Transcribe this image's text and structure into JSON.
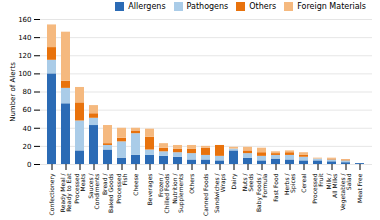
{
  "chart_data": {
    "type": "bar",
    "stacked": true,
    "categories": [
      "Confectionery",
      "Ready Meal /\nReady to Eat",
      "Processed\nMeats",
      "Sauces /\nCondiments",
      "Bread /\nBaked Goods",
      "Processed\nFish",
      "Cheese",
      "Beverages",
      "Frozen /\nChilled Foods",
      "Nutrition /\nSupplements",
      "Others",
      "Canned Foods",
      "Sandwiches /\nWraps",
      "Dairy",
      "Nuts /\nSeeds",
      "Baby Foods /\nFormula",
      "Fast Food",
      "Herbs /\nSpices",
      "Cereal",
      "Processed\nFruit",
      "Milk /\nAll Milks",
      "Vegetables /\nSalad",
      "Meat Free"
    ],
    "series": [
      {
        "name": "Allergens",
        "color": "#2b6bb5",
        "values": [
          100,
          67,
          15,
          43,
          16,
          7,
          10,
          10,
          9,
          8,
          5,
          5,
          4,
          15,
          7,
          4,
          6,
          5,
          4,
          4,
          3,
          2,
          1
        ]
      },
      {
        "name": "Pathogens",
        "color": "#aacce8",
        "values": [
          15,
          17,
          33,
          8,
          5,
          18,
          24,
          6,
          5,
          5,
          7,
          5,
          5,
          2,
          5,
          5,
          4,
          5,
          4,
          2,
          2,
          2,
          0
        ]
      },
      {
        "name": "Others",
        "color": "#e8720c",
        "values": [
          14,
          8,
          20,
          5,
          2,
          4,
          3,
          14,
          4,
          4,
          5,
          8,
          12,
          0,
          3,
          4,
          2,
          3,
          2,
          0,
          1,
          1,
          0
        ]
      },
      {
        "name": "Foreign Materials",
        "color": "#f5b97f",
        "values": [
          25,
          54,
          17,
          9,
          20,
          11,
          3,
          9,
          5,
          4,
          4,
          2,
          0,
          2,
          4,
          5,
          2,
          2,
          3,
          1,
          1,
          0,
          0
        ]
      }
    ],
    "ylabel": "Number of Alerts",
    "ylim": [
      0,
      160
    ],
    "yticks": [
      0,
      20,
      40,
      60,
      80,
      100,
      120,
      140,
      160
    ],
    "grid": true,
    "legend": "upper right"
  }
}
